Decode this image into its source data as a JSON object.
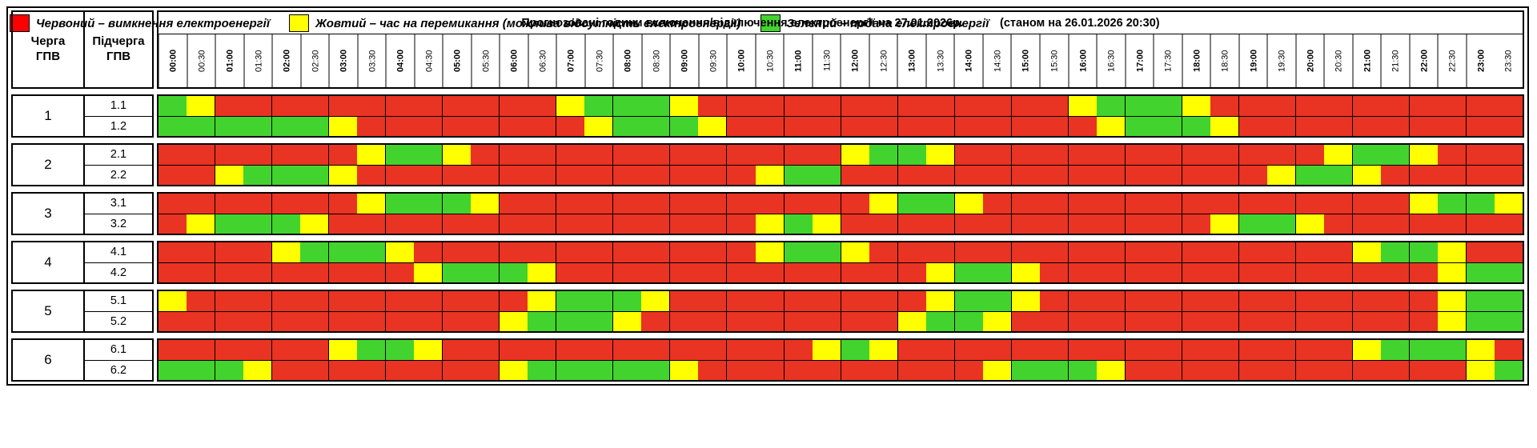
{
  "title": {
    "main": "Прогнозовані години включення/відключення електроенергії на 27.01.2026р.",
    "note": "(станом на 26.01.2026 20:30)"
  },
  "columns": {
    "queue": "Черга\nГПВ",
    "subqueue": "Підчерга\nГПВ"
  },
  "times": [
    "00:00",
    "00:30",
    "01:00",
    "01:30",
    "02:00",
    "02:30",
    "03:00",
    "03:30",
    "04:00",
    "04:30",
    "05:00",
    "05:30",
    "06:00",
    "06:30",
    "07:00",
    "07:30",
    "08:00",
    "08:30",
    "09:00",
    "09:30",
    "10:00",
    "10:30",
    "11:00",
    "11:30",
    "12:00",
    "12:30",
    "13:00",
    "13:30",
    "14:00",
    "14:30",
    "15:00",
    "15:30",
    "16:00",
    "16:30",
    "17:00",
    "17:30",
    "18:00",
    "18:30",
    "19:00",
    "19:30",
    "20:00",
    "20:30",
    "21:00",
    "21:30",
    "22:00",
    "22:30",
    "23:00",
    "23:30"
  ],
  "colors": {
    "R": "#e93323",
    "Y": "#ffff00",
    "G": "#43d32e"
  },
  "legend": [
    {
      "color": "#ff0000",
      "label": "Червоний – вимкнення електроенергії"
    },
    {
      "color": "#ffff00",
      "label": "Жовтий – час на перемикання (можлива відсутність електроенергії)"
    },
    {
      "color": "#43d32e",
      "label": "Зелений – подача електроенергії"
    }
  ],
  "groups": [
    {
      "queue": "1",
      "rows": [
        {
          "label": "1.1",
          "slots": "GYRRRRRRRRRRRRYGGGYRRRRRRRRRRRRRYGGGYRRRRRRRRRRR"
        },
        {
          "label": "1.2",
          "slots": "GGGGGGYRRRRRRRRYGGGYRRRRRRRRRRRRRYGGGYRRRRRRRRRR"
        }
      ]
    },
    {
      "queue": "2",
      "rows": [
        {
          "label": "2.1",
          "slots": "RRRRRRRYGGYRRRRRRRRRRRRRYGGYRRRRRRRRRRRRRYGGYRRR"
        },
        {
          "label": "2.2",
          "slots": "RRYGGGYRRRRRRRRRRRRRRYGGRRRRRRRRRRRRRRRYGGYRRRRR"
        }
      ]
    },
    {
      "queue": "3",
      "rows": [
        {
          "label": "3.1",
          "slots": "RRRRRRRYGGGYRRRRRRRRRRRRRYGGYRRRRRRRRRRRRRRRYGGY"
        },
        {
          "label": "3.2",
          "slots": "RYGGGYRRRRRRRRRRRRRRRYGYRRRRRRRRRRRRRYGGYRRRRRRR"
        }
      ]
    },
    {
      "queue": "4",
      "rows": [
        {
          "label": "4.1",
          "slots": "RRRRYGGGYRRRRRRRRRRRRYGGYRRRRRRRRRRRRRRRRRYGGYRR"
        },
        {
          "label": "4.2",
          "slots": "RRRRRRRRRYGGGYRRRRRRRRRRRRRYGGYRRRRRRRRRRRRRRYGG"
        }
      ]
    },
    {
      "queue": "5",
      "rows": [
        {
          "label": "5.1",
          "slots": "YRRRRRRRRRRRRYGGGYRRRRRRRRRYGGYRRRRRRRRRRRRRRYGG"
        },
        {
          "label": "5.2",
          "slots": "RRRRRRRRRRRRYGGGYRRRRRRRRRYGGYRRRRRRRRRRRRRRRYGG"
        }
      ]
    },
    {
      "queue": "6",
      "rows": [
        {
          "label": "6.1",
          "slots": "RRRRRRYGGYRRRRRRRRRRRRRYGYRRRRRRRRRRRRRRRRYGGGYR"
        },
        {
          "label": "6.2",
          "slots": "GGGYRRRRRRRRYGGGGGYRRRRRRRRRRYGGGYRRRRRRRRRRRRYG"
        }
      ]
    }
  ]
}
